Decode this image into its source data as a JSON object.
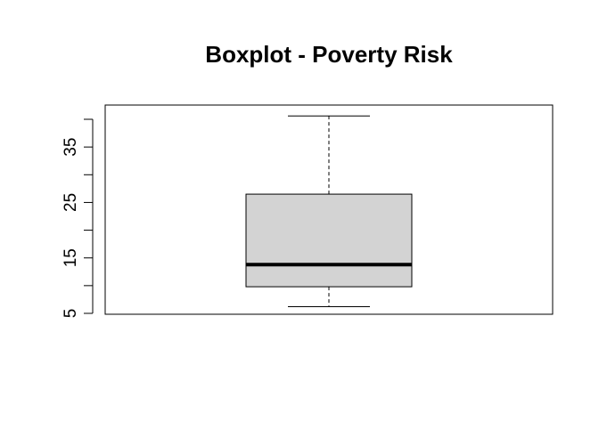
{
  "chart_data": {
    "type": "boxplot",
    "title": "Boxplot - Poverty Risk",
    "xlabel": "",
    "ylabel": "",
    "ylim": [
      5,
      41
    ],
    "y_ticks": [
      5,
      10,
      15,
      20,
      25,
      30,
      35,
      40
    ],
    "y_tick_labels": [
      "5",
      "15",
      "25",
      "35"
    ],
    "series": [
      {
        "min": 6.2,
        "q1": 9.8,
        "median": 13.8,
        "q3": 26.5,
        "max": 40.6
      }
    ],
    "colors": {
      "box_fill": "#d3d3d3",
      "stroke": "#000000"
    },
    "grid": false
  }
}
